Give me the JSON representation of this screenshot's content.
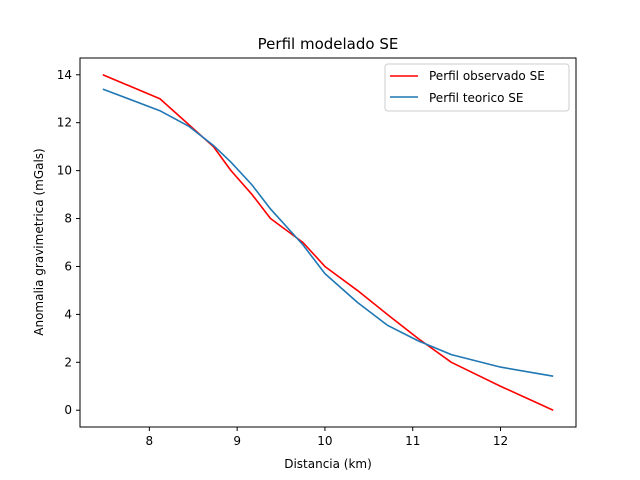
{
  "chart_data": {
    "type": "line",
    "title": "Perfil modelado SE",
    "xlabel": "Distancia (km)",
    "ylabel": "Anomalia gravimetrica (mGals)",
    "xlim": [
      7.21,
      12.86
    ],
    "ylim": [
      -0.7,
      14.7
    ],
    "xticks": [
      8,
      9,
      10,
      11,
      12
    ],
    "yticks": [
      0,
      2,
      4,
      6,
      8,
      10,
      12,
      14
    ],
    "grid": false,
    "legend_position": "top-right",
    "series": [
      {
        "name": "Perfil observado SE",
        "color": "#ff0000",
        "x": [
          7.47,
          8.12,
          8.73,
          8.93,
          9.17,
          9.38,
          9.75,
          10.0,
          10.37,
          10.71,
          11.06,
          11.44,
          12.0,
          12.6
        ],
        "y": [
          14.0,
          13.0,
          11.0,
          10.0,
          9.0,
          8.0,
          7.0,
          6.0,
          5.0,
          4.0,
          3.0,
          2.0,
          1.0,
          0.0
        ]
      },
      {
        "name": "Perfil teorico SE",
        "color": "#1f77b4",
        "x": [
          7.47,
          8.12,
          8.45,
          8.73,
          8.93,
          9.17,
          9.38,
          9.75,
          10.0,
          10.37,
          10.71,
          11.06,
          11.44,
          12.0,
          12.6
        ],
        "y": [
          13.4,
          12.5,
          11.85,
          11.05,
          10.35,
          9.4,
          8.4,
          6.9,
          5.7,
          4.5,
          3.55,
          2.9,
          2.32,
          1.8,
          1.42
        ]
      }
    ]
  }
}
